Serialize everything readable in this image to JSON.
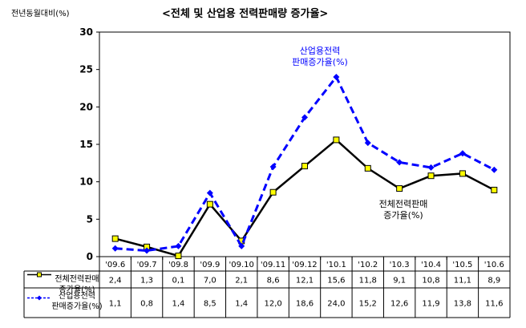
{
  "chart_data": {
    "type": "line",
    "title": "<전체 및 산업용 전력판매량 증가율>",
    "ylabel": "전년동월대비(%)",
    "ylim": [
      0,
      30
    ],
    "yticks": [
      0,
      5,
      10,
      15,
      20,
      25,
      30
    ],
    "grid": false,
    "categories": [
      "'09.6",
      "'09.7",
      "'09.8",
      "'09.9",
      "'09.10",
      "'09.11",
      "'09.12",
      "'10.1",
      "'10.2",
      "'10.3",
      "'10.4",
      "'10.5",
      "'10.6"
    ],
    "series": [
      {
        "name": "전체전력판매 증가율(%)",
        "legend_lines": [
          "전체전력판매",
          "증가율(%)"
        ],
        "annotation_lines": [
          "전체전력판매",
          "증가율(%)"
        ],
        "color": "#000000",
        "style": "solid",
        "marker": "square",
        "marker_color": "#ffff00",
        "values": [
          2.4,
          1.3,
          0.1,
          7.0,
          2.1,
          8.6,
          12.1,
          15.6,
          11.8,
          9.1,
          10.8,
          11.1,
          8.9
        ],
        "labels": [
          "2,4",
          "1,3",
          "0,1",
          "7,0",
          "2,1",
          "8,6",
          "12,1",
          "15,6",
          "11,8",
          "9,1",
          "10,8",
          "11,1",
          "8,9"
        ]
      },
      {
        "name": "산업용전력 판매증가율(%)",
        "legend_lines": [
          "산업용전력",
          "판매증가율(%)"
        ],
        "annotation_lines": [
          "산업용전력",
          "판매증가율(%)"
        ],
        "color": "#0000ff",
        "style": "dashed",
        "marker": "diamond",
        "marker_color": "#0000ff",
        "values": [
          1.1,
          0.8,
          1.4,
          8.5,
          1.4,
          12.0,
          18.6,
          24.0,
          15.2,
          12.6,
          11.9,
          13.8,
          11.6
        ],
        "labels": [
          "1,1",
          "0,8",
          "1,4",
          "8,5",
          "1,4",
          "12,0",
          "18,6",
          "24,0",
          "15,2",
          "12,6",
          "11,9",
          "13,8",
          "11,6"
        ]
      }
    ]
  }
}
